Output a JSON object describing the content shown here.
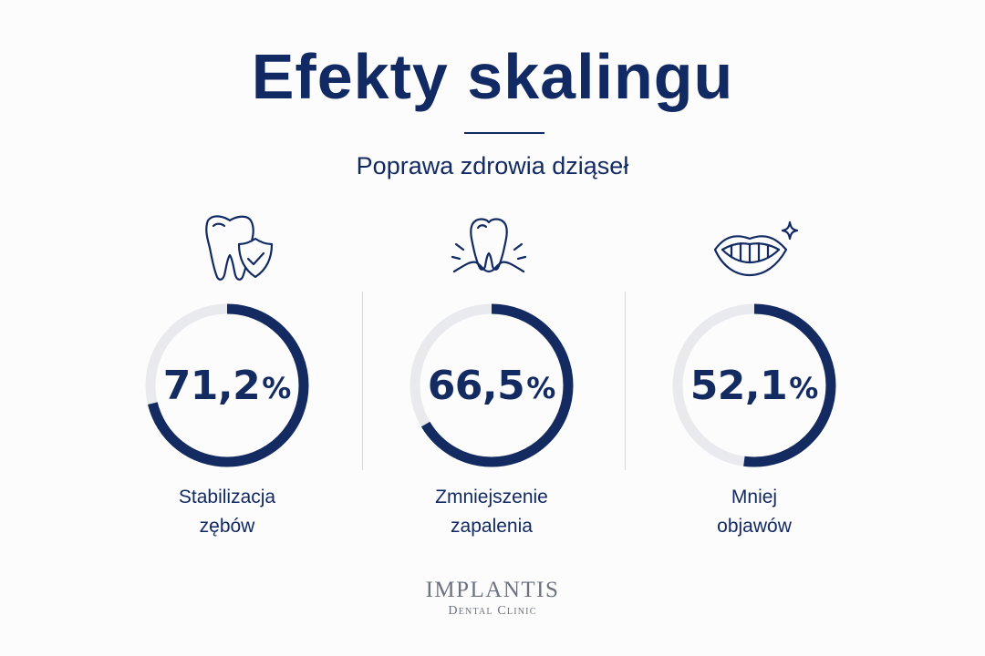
{
  "title": "Efekty skalingu",
  "subtitle": "Poprawa zdrowia dziąseł",
  "colors": {
    "ring_fill": "#132b60",
    "ring_track": "#e9eaee",
    "text": "#122a63",
    "logo": "#6c7280"
  },
  "chart_data": {
    "type": "donut",
    "title": "Efekty skalingu",
    "subtitle": "Poprawa zdrowia dziąseł",
    "unit": "%",
    "items": [
      {
        "value": 71.2,
        "value_label": "71,2",
        "label_line1": "Stabilizacja",
        "label_line2": "zębów",
        "icon": "tooth-shield-check-icon"
      },
      {
        "value": 66.5,
        "value_label": "66,5",
        "label_line1": "Zmniejszenie",
        "label_line2": "zapalenia",
        "icon": "tooth-inflamed-gum-icon"
      },
      {
        "value": 52.1,
        "value_label": "52,1",
        "label_line1": "Mniej",
        "label_line2": "objawów",
        "icon": "smile-sparkle-icon"
      }
    ]
  },
  "logo": {
    "name": "IMPLANTIS",
    "tagline": "Dental Clinic"
  }
}
